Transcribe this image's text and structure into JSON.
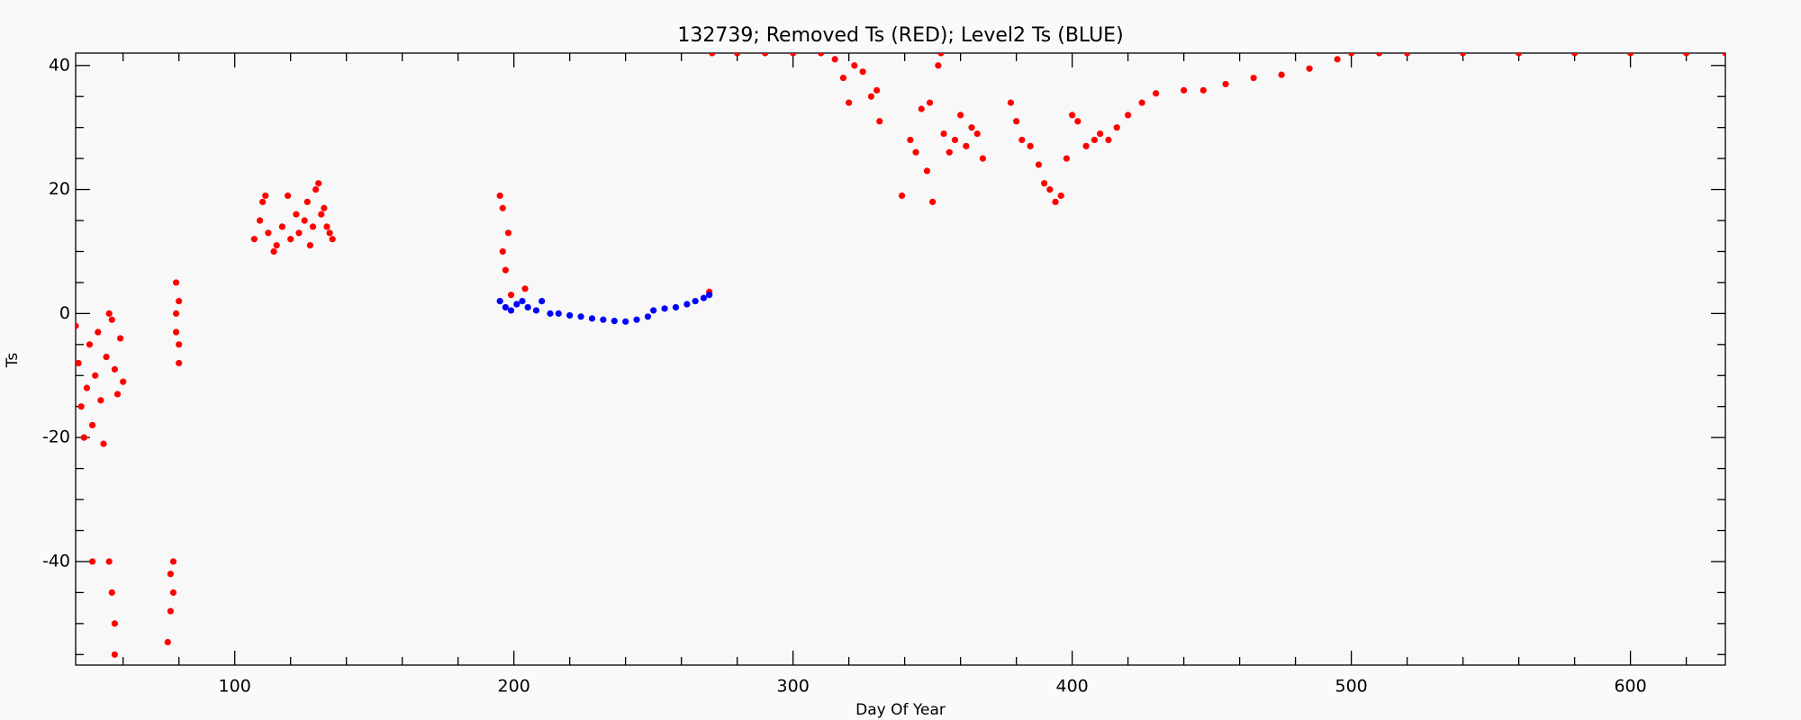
{
  "chart_data": {
    "type": "scatter",
    "title": "132739; Removed Ts (RED); Level2 Ts (BLUE)",
    "x_label": "Day Of Year",
    "y_label": "Ts",
    "xlim": [
      43,
      634
    ],
    "ylim": [
      -56.7,
      42
    ],
    "xticks": [
      100,
      200,
      300,
      400,
      500,
      600
    ],
    "yticks": [
      -40,
      -20,
      0,
      20,
      40
    ],
    "xminorticks": [
      60,
      80,
      120,
      140,
      160,
      180,
      220,
      240,
      260,
      280,
      320,
      340,
      360,
      380,
      420,
      440,
      460,
      480,
      520,
      540,
      560,
      580,
      620
    ],
    "yminorticks": [
      -55,
      -50,
      -45,
      -35,
      -30,
      -25,
      -15,
      -10,
      -5,
      5,
      10,
      15,
      25,
      30,
      35
    ],
    "series": [
      {
        "color": "#ff0000",
        "x": [
          43,
          44,
          45,
          46,
          47,
          48,
          49,
          50,
          51,
          52,
          53,
          54,
          55,
          56,
          57,
          58,
          59,
          60,
          55,
          56,
          57,
          57,
          49,
          76,
          77,
          77,
          78,
          78,
          79,
          79,
          80,
          80,
          79,
          80,
          107,
          109,
          110,
          111,
          112,
          114,
          115,
          117,
          119,
          120,
          122,
          123,
          125,
          126,
          127,
          128,
          129,
          130,
          131,
          132,
          133,
          134,
          135,
          195,
          196,
          196,
          197,
          198,
          199,
          204,
          270,
          271,
          280,
          290,
          300,
          310,
          315,
          318,
          320,
          322,
          325,
          328,
          330,
          331,
          339,
          342,
          344,
          346,
          348,
          349,
          350,
          352,
          353,
          354,
          356,
          358,
          360,
          362,
          364,
          366,
          368,
          378,
          380,
          382,
          385,
          388,
          390,
          392,
          394,
          396,
          398,
          400,
          402,
          405,
          408,
          410,
          413,
          416,
          420,
          425,
          430,
          440,
          447,
          455,
          465,
          475,
          485,
          495,
          500,
          510,
          520,
          540,
          560,
          580,
          600,
          620,
          634
        ],
        "values": [
          -2,
          -8,
          -15,
          -20,
          -12,
          -5,
          -18,
          -10,
          -3,
          -14,
          -21,
          -7,
          0,
          -1,
          -9,
          -13,
          -4,
          -11,
          -40,
          -45,
          -50,
          -55,
          -40,
          -53,
          -48,
          -42,
          -45,
          -40,
          5,
          0,
          -5,
          -8,
          -3,
          2,
          12,
          15,
          18,
          19,
          13,
          10,
          11,
          14,
          19,
          12,
          16,
          13,
          15,
          18,
          11,
          14,
          20,
          21,
          16,
          17,
          14,
          13,
          12,
          19,
          17,
          10,
          7,
          13,
          3,
          4,
          3.5,
          42,
          42,
          42,
          42,
          42,
          41,
          38,
          34,
          40,
          39,
          35,
          36,
          31,
          19,
          28,
          26,
          33,
          23,
          34,
          18,
          40,
          42,
          29,
          26,
          28,
          32,
          27,
          30,
          29,
          25,
          34,
          31,
          28,
          27,
          24,
          21,
          20,
          18,
          19,
          25,
          32,
          31,
          27,
          28,
          29,
          28,
          30,
          32,
          34,
          35.5,
          36,
          36,
          37,
          38,
          38.5,
          39.5,
          41,
          42,
          42,
          42,
          42,
          42,
          42,
          42,
          42,
          42
        ]
      },
      {
        "color": "#0000ff",
        "x": [
          195,
          197,
          199,
          201,
          203,
          205,
          208,
          210,
          213,
          216,
          220,
          224,
          228,
          232,
          236,
          240,
          244,
          248,
          250,
          254,
          258,
          262,
          265,
          268,
          270
        ],
        "values": [
          2,
          1,
          0.5,
          1.5,
          2,
          1,
          0.5,
          2,
          0,
          0,
          -0.3,
          -0.5,
          -0.8,
          -1,
          -1.2,
          -1.3,
          -1,
          -0.5,
          0.5,
          0.8,
          1,
          1.5,
          2,
          2.5,
          3
        ]
      }
    ]
  }
}
